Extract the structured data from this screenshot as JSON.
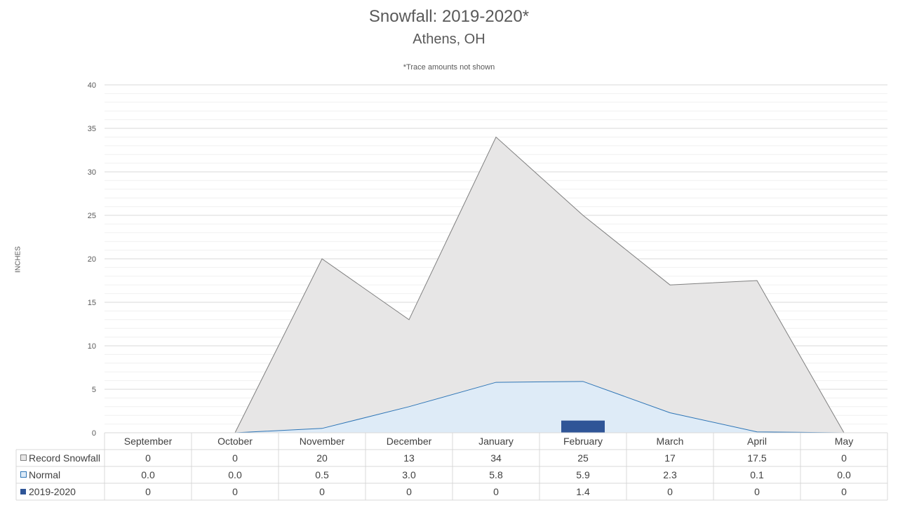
{
  "chart_data": {
    "type": "area",
    "title": "Snowfall: 2019-2020*",
    "subtitle": "Athens, OH",
    "note": "*Trace amounts not shown",
    "ylabel": "INCHES",
    "ylim": [
      0,
      40
    ],
    "yticks": [
      0,
      5,
      10,
      15,
      20,
      25,
      30,
      35,
      40
    ],
    "categories": [
      "September",
      "October",
      "November",
      "December",
      "January",
      "February",
      "March",
      "April",
      "May"
    ],
    "series": [
      {
        "name": "Record Snowfall",
        "kind": "area",
        "color": "#e7e6e6",
        "line": "#7f7f7f",
        "values": [
          0,
          0,
          20,
          13,
          34,
          25,
          17,
          17.5,
          0
        ],
        "display": [
          "0",
          "0",
          "20",
          "13",
          "34",
          "25",
          "17",
          "17.5",
          "0"
        ]
      },
      {
        "name": "Normal",
        "kind": "area",
        "color": "#deebf7",
        "line": "#2e75b6",
        "values": [
          0.0,
          0.0,
          0.5,
          3.0,
          5.8,
          5.9,
          2.3,
          0.1,
          0.0
        ],
        "display": [
          "0.0",
          "0.0",
          "0.5",
          "3.0",
          "5.8",
          "5.9",
          "2.3",
          "0.1",
          "0.0"
        ]
      },
      {
        "name": "2019-2020",
        "kind": "bar",
        "color": "#2f5597",
        "line": "#2f5597",
        "values": [
          0,
          0,
          0,
          0,
          0,
          1.4,
          0,
          0,
          0
        ],
        "display": [
          "0",
          "0",
          "0",
          "0",
          "0",
          "1.4",
          "0",
          "0",
          "0"
        ]
      }
    ],
    "grid": true,
    "legend": "data-table"
  }
}
